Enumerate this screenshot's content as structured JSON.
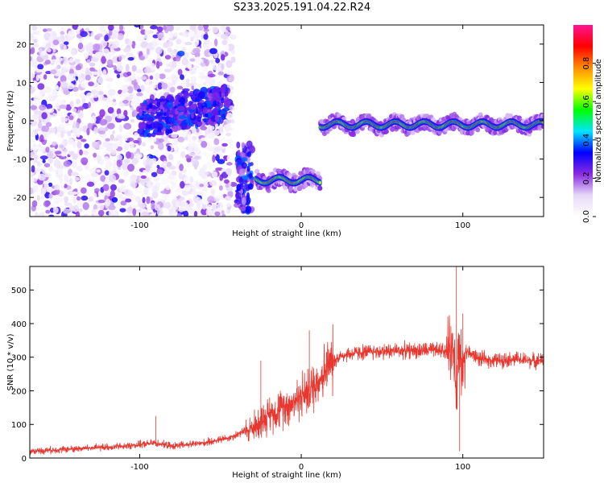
{
  "title": "S233.2025.191.04.22.R24",
  "colors": {
    "snr_line": "#e8372f",
    "axis": "#000000",
    "background": "#ffffff"
  },
  "chart_data": [
    {
      "type": "heatmap",
      "xlabel": "Height of straight line (km)",
      "ylabel": "Frequency (Hz)",
      "xlim": [
        -168,
        150
      ],
      "ylim": [
        -25,
        25
      ],
      "x_ticks": [
        -100,
        0,
        100
      ],
      "x_tick_labels": [
        "-100",
        "0",
        "100"
      ],
      "y_ticks": [
        -20,
        -10,
        0,
        10,
        20
      ],
      "y_tick_labels": [
        "-20",
        "-10",
        "0",
        "10",
        "20"
      ],
      "colorbar": {
        "label": "Normalized spectral amplitude",
        "range": [
          0.0,
          1.0
        ],
        "ticks": [
          0.0,
          0.2,
          0.4,
          0.6,
          0.8
        ],
        "tick_labels": [
          "0.0",
          "0.2",
          "0.4",
          "0.6",
          "0.8"
        ],
        "colormap": [
          "#ffffff",
          "#e6d8f8",
          "#8a2be2",
          "#0000ff",
          "#00e5ff",
          "#00ff00",
          "#ffff00",
          "#ff8c00",
          "#ff0000",
          "#ff1493"
        ]
      },
      "features": [
        {
          "name": "noise region",
          "x_range": [
            -168,
            -42
          ],
          "freq_range": [
            -25,
            25
          ],
          "amplitude": 0.15
        },
        {
          "name": "weak band",
          "x_range": [
            -100,
            -45
          ],
          "freq_center": [
            0,
            5
          ],
          "amplitude": 0.3
        },
        {
          "name": "lower band",
          "x_range": [
            -28,
            12
          ],
          "freq_center": -15.5,
          "amplitude": 0.6
        },
        {
          "name": "upper band",
          "x_range": [
            12,
            150
          ],
          "freq_center": -1,
          "amplitude": 0.95
        }
      ],
      "grid": false
    },
    {
      "type": "line",
      "xlabel": "Height of straight line (km)",
      "ylabel": "SNR (10 * v/v)",
      "xlim": [
        -168,
        150
      ],
      "ylim": [
        0,
        570
      ],
      "x_ticks": [
        -100,
        0,
        100
      ],
      "x_tick_labels": [
        "-100",
        "0",
        "100"
      ],
      "y_ticks": [
        0,
        100,
        200,
        300,
        400,
        500
      ],
      "y_tick_labels": [
        "0",
        "100",
        "200",
        "300",
        "400",
        "500"
      ],
      "series": [
        {
          "x": [
            -168,
            -150,
            -130,
            -110,
            -90,
            -80,
            -70,
            -60,
            -50,
            -45,
            -40,
            -35,
            -30,
            -25,
            -20,
            -15,
            -10,
            -5,
            0,
            5,
            10,
            15,
            20,
            25,
            30,
            40,
            60,
            80,
            90,
            95,
            96,
            97,
            100,
            101,
            105,
            110,
            120,
            130,
            140,
            150
          ],
          "y": [
            20,
            25,
            30,
            35,
            45,
            35,
            40,
            45,
            55,
            60,
            70,
            80,
            90,
            110,
            130,
            140,
            155,
            170,
            185,
            200,
            230,
            260,
            290,
            305,
            310,
            315,
            320,
            320,
            320,
            330,
            150,
            330,
            250,
            320,
            310,
            295,
            290,
            295,
            290,
            290
          ],
          "peaks": [
            {
              "x": -90,
              "y": 125
            },
            {
              "x": -25,
              "y": 290
            },
            {
              "x": 5,
              "y": 380
            },
            {
              "x": 96,
              "y": 570
            },
            {
              "x": 98,
              "y": 20
            },
            {
              "x": 100,
              "y": 430
            }
          ]
        }
      ],
      "grid": false
    }
  ]
}
